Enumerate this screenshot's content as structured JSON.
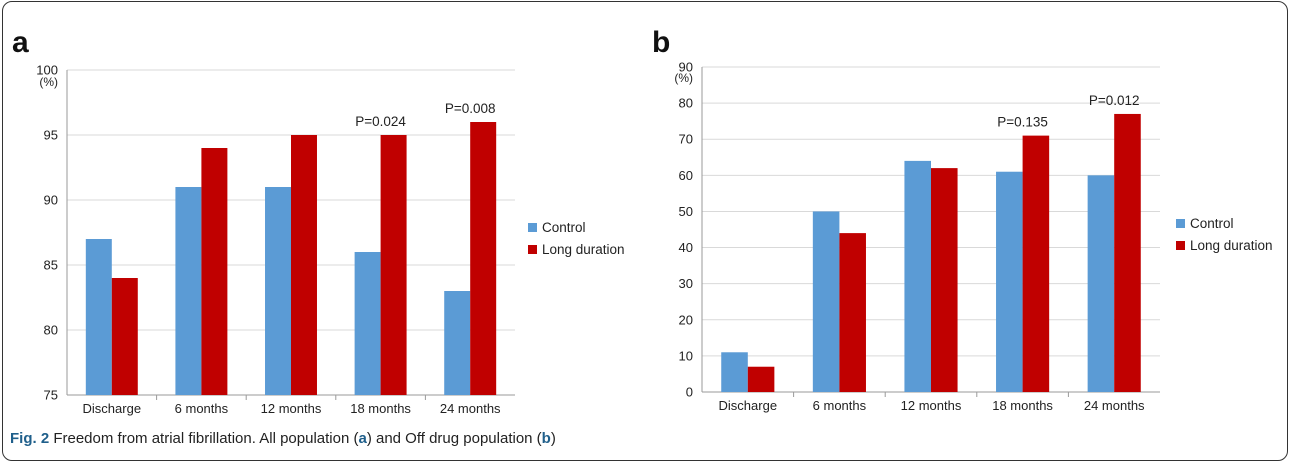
{
  "colors": {
    "control": "#5b9bd5",
    "long_duration": "#c00000",
    "grid": "#d9d9d9",
    "axis": "#9a9a9a"
  },
  "chart_data": [
    {
      "panel": "a",
      "type": "bar",
      "ylabel_unit": "(%)",
      "ylim": [
        75,
        100
      ],
      "yticks": [
        75,
        80,
        85,
        90,
        95,
        100
      ],
      "grid": true,
      "legend_position": "right",
      "categories": [
        "Discharge",
        "6 months",
        "12 months",
        "18 months",
        "24 months"
      ],
      "series": [
        {
          "name": "Control",
          "values": [
            87,
            91,
            91,
            86,
            83
          ]
        },
        {
          "name": "Long duration",
          "values": [
            84,
            94,
            95,
            95,
            96
          ]
        }
      ],
      "annotations": [
        {
          "category": "18 months",
          "text": "P=0.024"
        },
        {
          "category": "24 months",
          "text": "P=0.008"
        }
      ]
    },
    {
      "panel": "b",
      "type": "bar",
      "ylabel_unit": "(%)",
      "ylim": [
        0,
        90
      ],
      "yticks": [
        0,
        10,
        20,
        30,
        40,
        50,
        60,
        70,
        80,
        90
      ],
      "grid": true,
      "legend_position": "right",
      "categories": [
        "Discharge",
        "6 months",
        "12 months",
        "18 months",
        "24 months"
      ],
      "series": [
        {
          "name": "Control",
          "values": [
            11,
            50,
            64,
            61,
            60
          ]
        },
        {
          "name": "Long duration",
          "values": [
            7,
            44,
            62,
            71,
            77
          ]
        }
      ],
      "annotations": [
        {
          "category": "18 months",
          "text": "P=0.135"
        },
        {
          "category": "24 months",
          "text": "P=0.012"
        }
      ]
    }
  ],
  "caption": {
    "label": "Fig. 2",
    "text_1": " Freedom from atrial fibrillation. All population (",
    "panel_a": "a",
    "text_2": ") and Off drug population (",
    "panel_b": "b",
    "text_3": ")"
  }
}
